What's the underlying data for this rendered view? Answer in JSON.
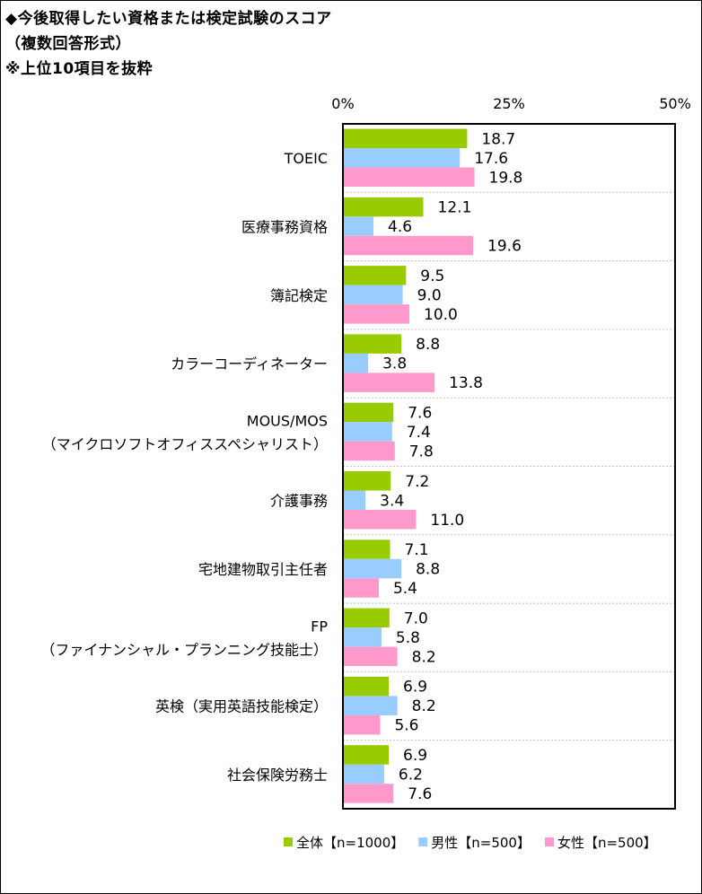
{
  "header": {
    "title": "◆今後取得したい資格または検定試験のスコア",
    "subtitle": "（複数回答形式）",
    "note": "※上位10項目を抜粋"
  },
  "colors": {
    "all": "#99cc00",
    "male": "#99ccff",
    "female": "#ff99cc",
    "grid": "#bfbfbf"
  },
  "chart_data": {
    "type": "bar",
    "orientation": "horizontal",
    "title": "今後取得したい資格または検定試験のスコア",
    "xlim": [
      0,
      50
    ],
    "xticks": [
      "0%",
      "25%",
      "50%"
    ],
    "categories": [
      [
        "TOEIC"
      ],
      [
        "医療事務資格"
      ],
      [
        "簿記検定"
      ],
      [
        "カラーコーディネーター"
      ],
      [
        "MOUS/MOS",
        "（マイクロソフトオフィススペシャリスト）"
      ],
      [
        "介護事務"
      ],
      [
        "宅地建物取引主任者"
      ],
      [
        "FP",
        "（ファイナンシャル・プランニング技能士）"
      ],
      [
        "英検（実用英語技能検定）"
      ],
      [
        "社会保険労務士"
      ]
    ],
    "series": [
      {
        "name": "全体【n=1000】",
        "color_key": "all",
        "values": [
          18.7,
          12.1,
          9.5,
          8.8,
          7.6,
          7.2,
          7.1,
          7.0,
          6.9,
          6.9
        ],
        "labels": [
          "18.7",
          "12.1",
          "9.5",
          "8.8",
          "7.6",
          "7.2",
          "7.1",
          "7.0",
          "6.9",
          "6.9"
        ]
      },
      {
        "name": "男性【n=500】",
        "color_key": "male",
        "values": [
          17.6,
          4.6,
          9.0,
          3.8,
          7.4,
          3.4,
          8.8,
          5.8,
          8.2,
          6.2
        ],
        "labels": [
          "17.6",
          "4.6",
          "9.0",
          "3.8",
          "7.4",
          "3.4",
          "8.8",
          "5.8",
          "8.2",
          "6.2"
        ]
      },
      {
        "name": "女性【n=500】",
        "color_key": "female",
        "values": [
          19.8,
          19.6,
          10.0,
          13.8,
          7.8,
          11.0,
          5.4,
          8.2,
          5.6,
          7.6
        ],
        "labels": [
          "19.8",
          "19.6",
          "10.0",
          "13.8",
          "7.8",
          "11.0",
          "5.4",
          "8.2",
          "5.6",
          "7.6"
        ]
      }
    ],
    "legend_position": "bottom-right"
  }
}
